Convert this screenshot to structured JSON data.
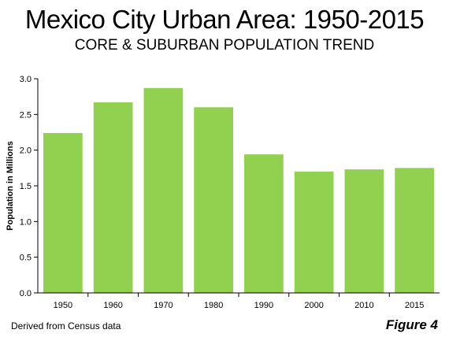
{
  "chart_data": {
    "type": "bar",
    "title": "Mexico City Urban Area: 1950-2015",
    "subtitle": "CORE & SUBURBAN POPULATION TREND",
    "xlabel": "",
    "ylabel": "Population in Millions",
    "categories": [
      "1950",
      "1960",
      "1970",
      "1980",
      "1990",
      "2000",
      "2010",
      "2015"
    ],
    "values": [
      2.24,
      2.67,
      2.87,
      2.6,
      1.94,
      1.7,
      1.73,
      1.75
    ],
    "ylim": [
      0,
      3
    ],
    "yticks": [
      "0.0",
      "0.5",
      "1.0",
      "1.5",
      "2.0",
      "2.5",
      "3.0"
    ],
    "grid": false,
    "bar_color": "#92d050"
  },
  "footer": {
    "source": "Derived from Census data",
    "figure": "Figure 4"
  }
}
